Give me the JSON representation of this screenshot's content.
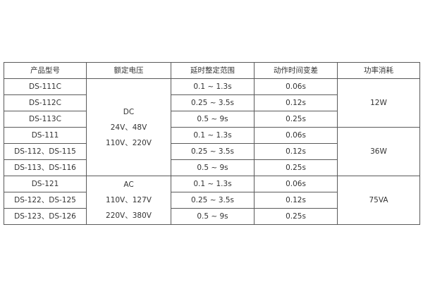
{
  "headers": [
    "产品型号",
    "额定电压",
    "延时整定范围",
    "动作时间变差",
    "功率消耗"
  ],
  "models": [
    "DS-111C",
    "DS-112C",
    "DS-113C",
    "DS-111",
    "DS-112、DS-115",
    "DS-113、DS-116",
    "DS-121",
    "DS-122、DS-125",
    "DS-123、DS-126"
  ],
  "voltage_groups": [
    {
      "lines": [
        "DC",
        "24V、48V",
        "110V、220V"
      ]
    },
    {
      "lines": [
        "AC",
        "110V、127V",
        "220V、380V"
      ]
    }
  ],
  "delay_ranges": [
    "0.1 ~ 1.3s",
    "0.25 ~ 3.5s",
    "0.5 ~ 9s",
    "0.1 ~ 1.3s",
    "0.25 ~ 3.5s",
    "0.5 ~ 9s",
    "0.1 ~ 1.3s",
    "0.25 ~ 3.5s",
    "0.5 ~ 9s"
  ],
  "time_variations": [
    "0.06s",
    "0.12s",
    "0.25s",
    "0.06s",
    "0.12s",
    "0.25s",
    "0.06s",
    "0.12s",
    "0.25s"
  ],
  "power": [
    "12W",
    "36W",
    "75VA"
  ]
}
